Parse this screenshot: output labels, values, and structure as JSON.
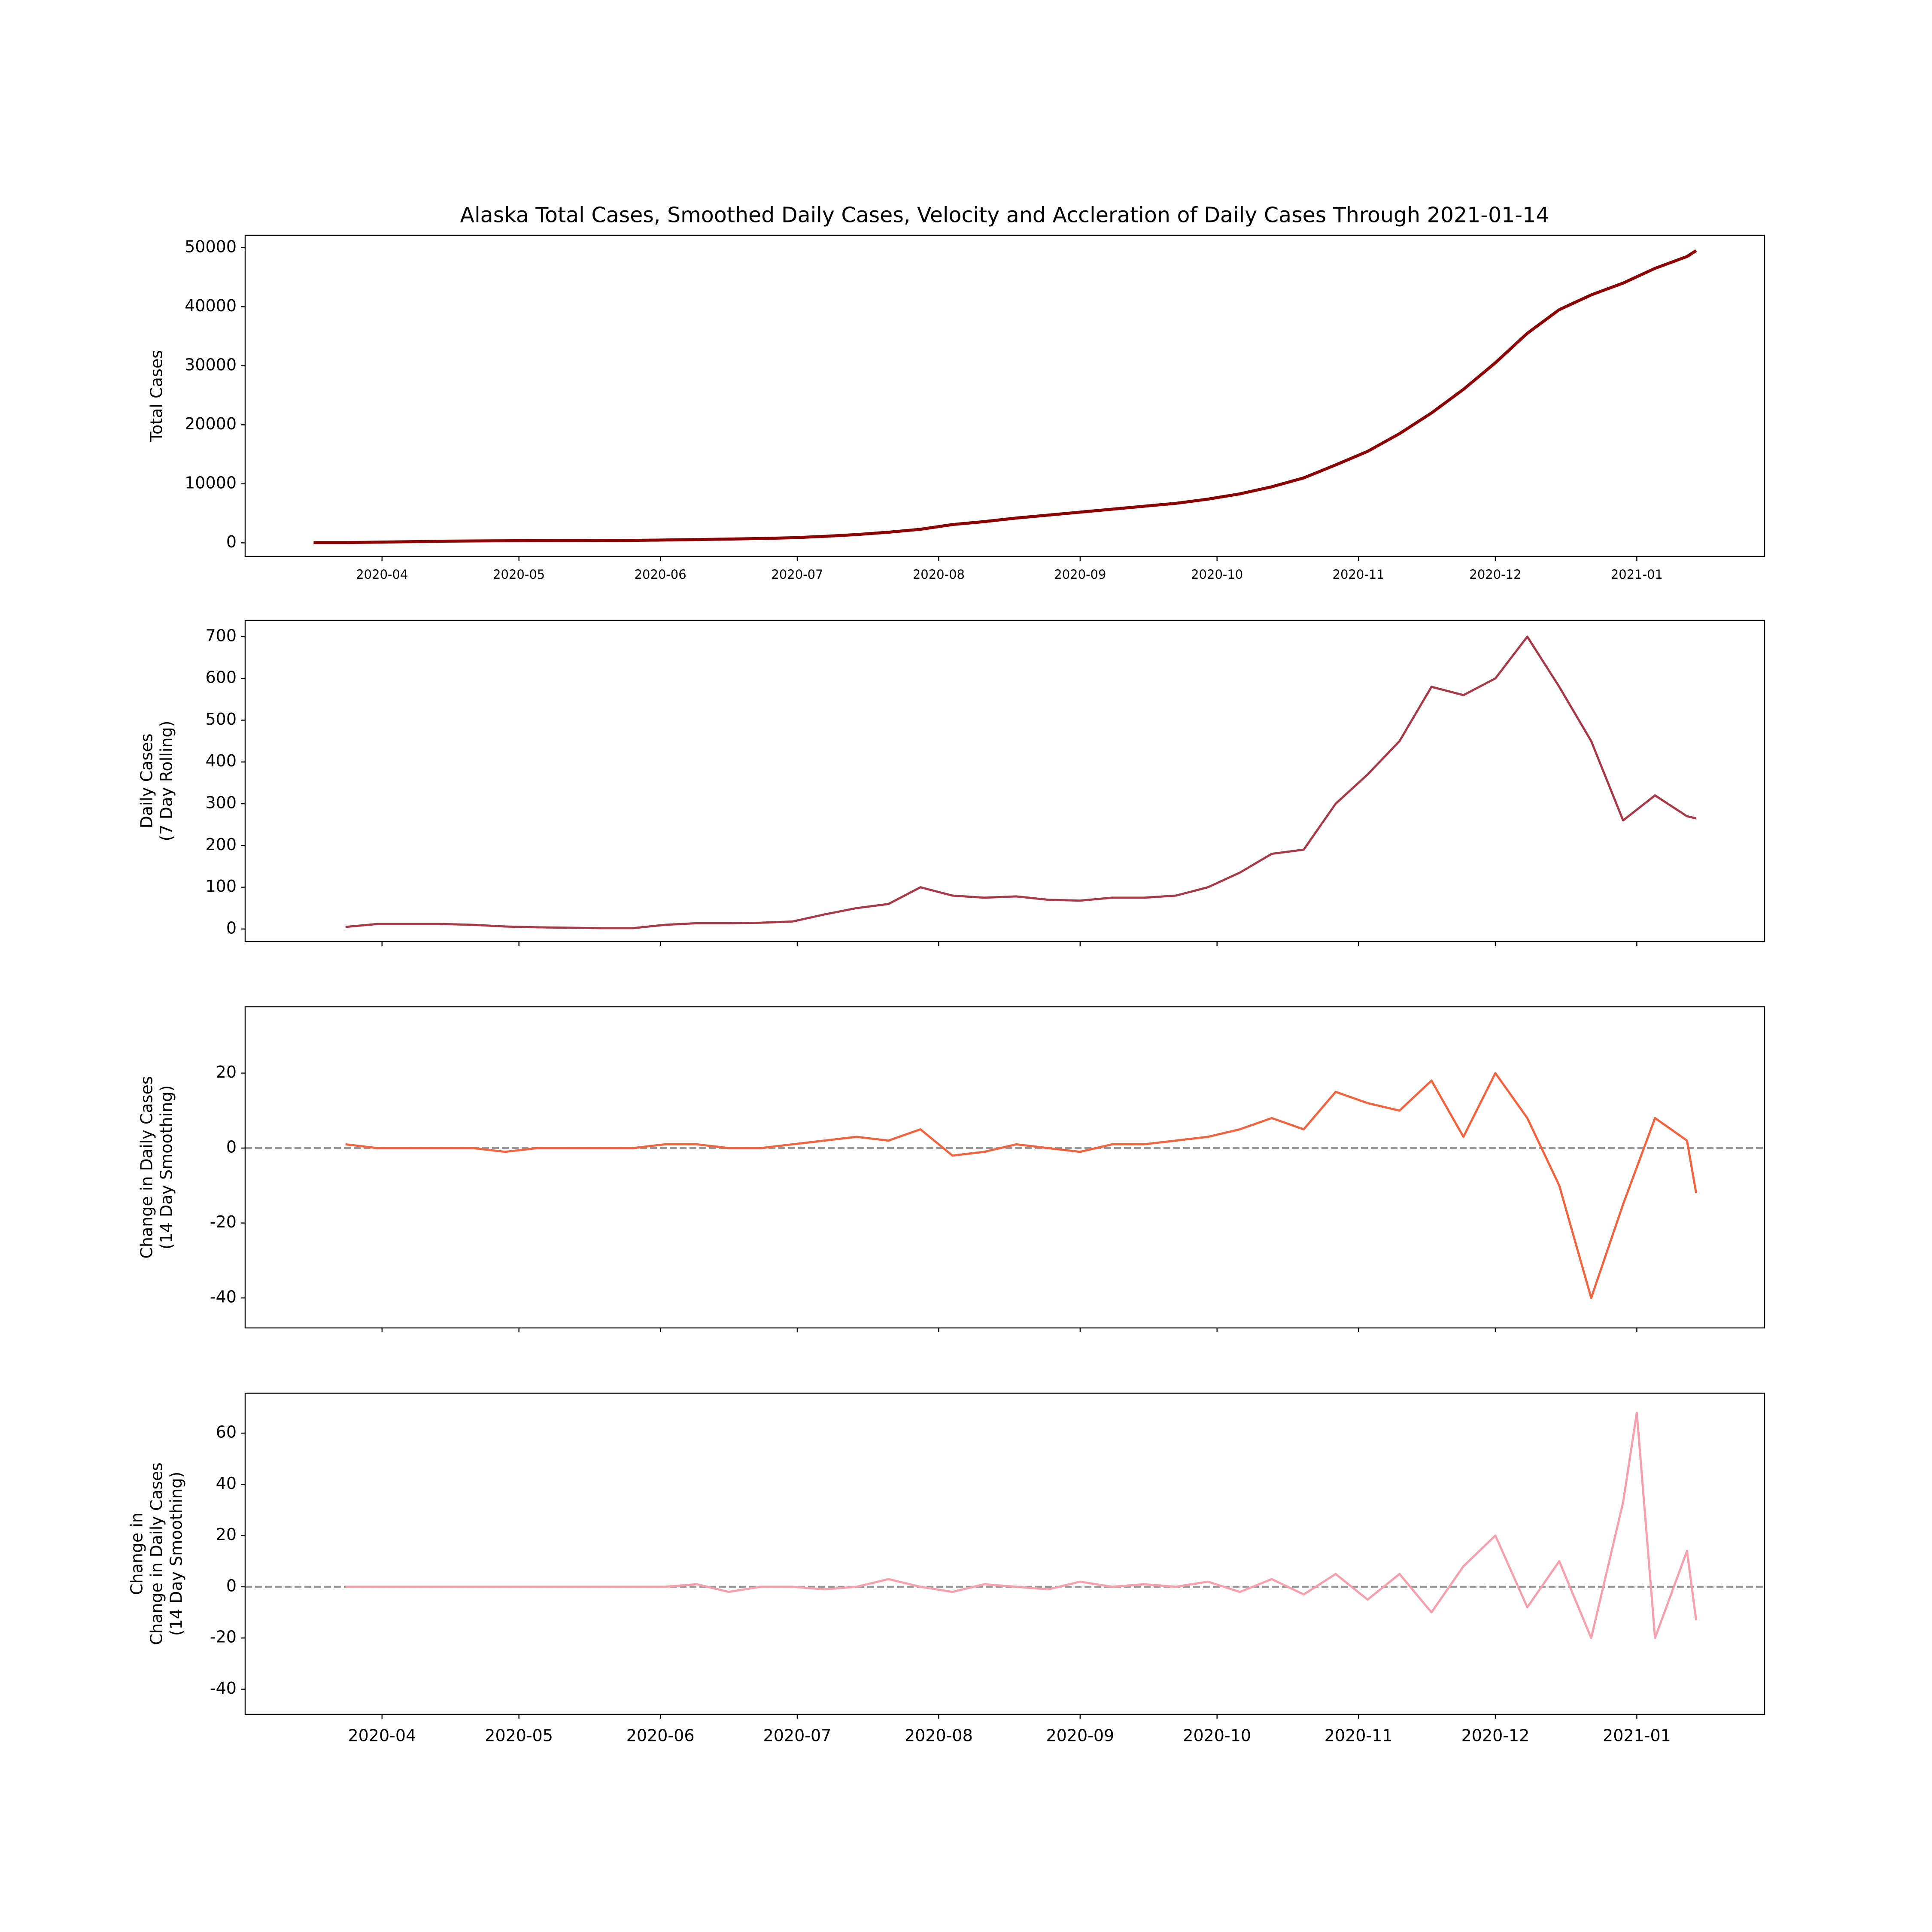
{
  "chart_data": [
    {
      "type": "line",
      "title": "Alaska Total Cases, Smoothed Daily Cases, Velocity and Accleration of Daily Cases Through 2021-01-14",
      "ylabel": [
        "Total Cases"
      ],
      "color": "#8b0000",
      "x": [
        "2020-03-17",
        "2020-03-24",
        "2020-03-31",
        "2020-04-07",
        "2020-04-14",
        "2020-04-21",
        "2020-04-28",
        "2020-05-05",
        "2020-05-12",
        "2020-05-19",
        "2020-05-26",
        "2020-06-02",
        "2020-06-09",
        "2020-06-16",
        "2020-06-23",
        "2020-06-30",
        "2020-07-07",
        "2020-07-14",
        "2020-07-21",
        "2020-07-28",
        "2020-08-04",
        "2020-08-11",
        "2020-08-18",
        "2020-08-25",
        "2020-09-01",
        "2020-09-08",
        "2020-09-15",
        "2020-09-22",
        "2020-09-29",
        "2020-10-06",
        "2020-10-13",
        "2020-10-20",
        "2020-10-27",
        "2020-11-03",
        "2020-11-10",
        "2020-11-17",
        "2020-11-24",
        "2020-12-01",
        "2020-12-08",
        "2020-12-15",
        "2020-12-22",
        "2020-12-29",
        "2021-01-05",
        "2021-01-12",
        "2021-01-14"
      ],
      "values": [
        50,
        40,
        120,
        190,
        280,
        320,
        350,
        370,
        385,
        400,
        420,
        480,
        560,
        640,
        730,
        860,
        1100,
        1400,
        1800,
        2300,
        3100,
        3600,
        4200,
        4700,
        5200,
        5700,
        6200,
        6700,
        7400,
        8300,
        9500,
        11000,
        13200,
        15500,
        18500,
        22000,
        26000,
        30500,
        35500,
        39500,
        42000,
        44000,
        46500,
        48500,
        49500
      ],
      "xlim": [
        "2020-03-02",
        "2021-01-29"
      ],
      "xticks": [
        {
          "value": "2020-04-01",
          "label": "2020-04"
        },
        {
          "value": "2020-05-01",
          "label": "2020-05"
        },
        {
          "value": "2020-06-01",
          "label": "2020-06"
        },
        {
          "value": "2020-07-01",
          "label": "2020-07"
        },
        {
          "value": "2020-08-01",
          "label": "2020-08"
        },
        {
          "value": "2020-09-01",
          "label": "2020-09"
        },
        {
          "value": "2020-10-01",
          "label": "2020-10"
        },
        {
          "value": "2020-11-01",
          "label": "2020-11"
        },
        {
          "value": "2020-12-01",
          "label": "2020-12"
        },
        {
          "value": "2021-01-01",
          "label": "2021-01"
        }
      ],
      "ylim": [
        -2300,
        52100
      ],
      "yticks": [
        0,
        10000,
        20000,
        30000,
        40000,
        50000
      ]
    },
    {
      "type": "line",
      "ylabel": [
        "Daily Cases",
        "(7 Day Rolling)"
      ],
      "color": "#a63a48",
      "x": [
        "2020-03-17",
        "2020-03-24",
        "2020-03-31",
        "2020-04-07",
        "2020-04-14",
        "2020-04-21",
        "2020-04-28",
        "2020-05-05",
        "2020-05-12",
        "2020-05-19",
        "2020-05-26",
        "2020-06-02",
        "2020-06-09",
        "2020-06-16",
        "2020-06-23",
        "2020-06-30",
        "2020-07-07",
        "2020-07-14",
        "2020-07-21",
        "2020-07-28",
        "2020-08-04",
        "2020-08-11",
        "2020-08-18",
        "2020-08-25",
        "2020-09-01",
        "2020-09-08",
        "2020-09-15",
        "2020-09-22",
        "2020-09-29",
        "2020-10-06",
        "2020-10-13",
        "2020-10-20",
        "2020-10-27",
        "2020-11-03",
        "2020-11-10",
        "2020-11-17",
        "2020-11-24",
        "2020-12-01",
        "2020-12-08",
        "2020-12-15",
        "2020-12-22",
        "2020-12-29",
        "2021-01-05",
        "2021-01-12",
        "2021-01-14"
      ],
      "values": [
        null,
        5,
        12,
        12,
        12,
        10,
        6,
        4,
        3,
        2,
        2,
        10,
        14,
        14,
        15,
        18,
        35,
        50,
        60,
        100,
        80,
        75,
        78,
        70,
        68,
        75,
        75,
        80,
        100,
        135,
        180,
        190,
        300,
        370,
        450,
        580,
        560,
        600,
        700,
        580,
        450,
        260,
        320,
        270,
        265
      ],
      "xlim": [
        "2020-03-02",
        "2021-01-29"
      ],
      "xticks": [
        "2020-04-01",
        "2020-05-01",
        "2020-06-01",
        "2020-07-01",
        "2020-08-01",
        "2020-09-01",
        "2020-10-01",
        "2020-11-01",
        "2020-12-01",
        "2021-01-01"
      ],
      "show_xtick_labels": false,
      "ylim": [
        -30,
        739
      ],
      "yticks": [
        0,
        100,
        200,
        300,
        400,
        500,
        600,
        700
      ]
    },
    {
      "type": "line",
      "ylabel": [
        "Change in Daily Cases",
        "(14 Day Smoothing)"
      ],
      "color": "#f0653f",
      "hline": 0,
      "x": [
        "2020-03-17",
        "2020-03-24",
        "2020-03-31",
        "2020-04-07",
        "2020-04-14",
        "2020-04-21",
        "2020-04-28",
        "2020-05-05",
        "2020-05-12",
        "2020-05-19",
        "2020-05-26",
        "2020-06-02",
        "2020-06-09",
        "2020-06-16",
        "2020-06-23",
        "2020-06-30",
        "2020-07-07",
        "2020-07-14",
        "2020-07-21",
        "2020-07-28",
        "2020-08-04",
        "2020-08-11",
        "2020-08-18",
        "2020-08-25",
        "2020-09-01",
        "2020-09-08",
        "2020-09-15",
        "2020-09-22",
        "2020-09-29",
        "2020-10-06",
        "2020-10-13",
        "2020-10-20",
        "2020-10-27",
        "2020-11-03",
        "2020-11-10",
        "2020-11-17",
        "2020-11-24",
        "2020-12-01",
        "2020-12-08",
        "2020-12-15",
        "2020-12-22",
        "2020-12-29",
        "2021-01-05",
        "2021-01-12",
        "2021-01-14"
      ],
      "values": [
        null,
        1,
        0,
        0,
        0,
        0,
        -1,
        0,
        0,
        0,
        0,
        1,
        1,
        0,
        0,
        1,
        2,
        3,
        2,
        5,
        -2,
        -1,
        1,
        0,
        -1,
        1,
        1,
        2,
        3,
        5,
        8,
        5,
        15,
        12,
        10,
        18,
        3,
        20,
        8,
        -10,
        -40,
        -15,
        8,
        2,
        -12
      ],
      "xlim": [
        "2020-03-02",
        "2021-01-29"
      ],
      "xticks": [
        "2020-04-01",
        "2020-05-01",
        "2020-06-01",
        "2020-07-01",
        "2020-08-01",
        "2020-09-01",
        "2020-10-01",
        "2020-11-01",
        "2020-12-01",
        "2021-01-01"
      ],
      "show_xtick_labels": false,
      "ylim": [
        -48,
        37.7
      ],
      "yticks": [
        -40,
        -20,
        0,
        20
      ]
    },
    {
      "type": "line",
      "ylabel": [
        "Change in",
        "Change in Daily Cases",
        "(14 Day Smoothing)"
      ],
      "color": "#f4a0ad",
      "hline": 0,
      "x": [
        "2020-03-17",
        "2020-03-24",
        "2020-03-31",
        "2020-04-07",
        "2020-04-14",
        "2020-04-21",
        "2020-04-28",
        "2020-05-05",
        "2020-05-12",
        "2020-05-19",
        "2020-05-26",
        "2020-06-02",
        "2020-06-09",
        "2020-06-16",
        "2020-06-23",
        "2020-06-30",
        "2020-07-07",
        "2020-07-14",
        "2020-07-21",
        "2020-07-28",
        "2020-08-04",
        "2020-08-11",
        "2020-08-18",
        "2020-08-25",
        "2020-09-01",
        "2020-09-08",
        "2020-09-15",
        "2020-09-22",
        "2020-09-29",
        "2020-10-06",
        "2020-10-13",
        "2020-10-20",
        "2020-10-27",
        "2020-11-03",
        "2020-11-10",
        "2020-11-17",
        "2020-11-24",
        "2020-12-01",
        "2020-12-08",
        "2020-12-15",
        "2020-12-22",
        "2020-12-29",
        "2021-01-01",
        "2021-01-05",
        "2021-01-12",
        "2021-01-14"
      ],
      "values": [
        null,
        0,
        0,
        0,
        0,
        0,
        0,
        0,
        0,
        0,
        0,
        0,
        1,
        -2,
        0,
        0,
        -1,
        0,
        3,
        0,
        -2,
        1,
        0,
        -1,
        2,
        0,
        1,
        0,
        2,
        -2,
        3,
        -3,
        5,
        -5,
        5,
        -10,
        8,
        20,
        -8,
        10,
        -20,
        33,
        68,
        -20,
        14,
        -13
      ],
      "xlim": [
        "2020-03-02",
        "2021-01-29"
      ],
      "xticks": [
        {
          "value": "2020-04-01",
          "label": "2020-04"
        },
        {
          "value": "2020-05-01",
          "label": "2020-05"
        },
        {
          "value": "2020-06-01",
          "label": "2020-06"
        },
        {
          "value": "2020-07-01",
          "label": "2020-07"
        },
        {
          "value": "2020-08-01",
          "label": "2020-08"
        },
        {
          "value": "2020-09-01",
          "label": "2020-09"
        },
        {
          "value": "2020-10-01",
          "label": "2020-10"
        },
        {
          "value": "2020-11-01",
          "label": "2020-11"
        },
        {
          "value": "2020-12-01",
          "label": "2020-12"
        },
        {
          "value": "2021-01-01",
          "label": "2021-01"
        }
      ],
      "ylim": [
        -49.8,
        75.6
      ],
      "yticks": [
        -40,
        -20,
        0,
        20,
        40,
        60
      ]
    }
  ]
}
